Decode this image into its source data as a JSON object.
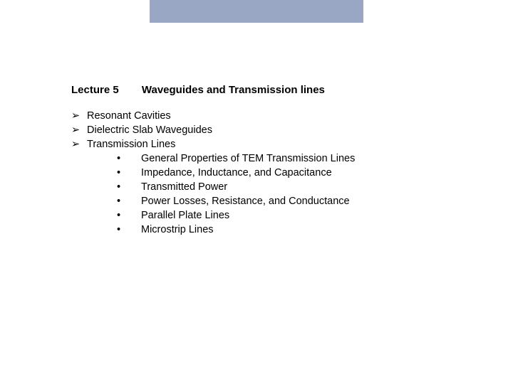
{
  "colors": {
    "top_bar": "#9aa7c4",
    "background": "#ffffff",
    "text": "#000000"
  },
  "heading": {
    "lecture": "Lecture 5",
    "title": "Waveguides and Transmission lines"
  },
  "bullets": {
    "arrow": "➢",
    "dot": "•"
  },
  "outline": [
    {
      "label": " Resonant Cavities",
      "children": []
    },
    {
      "label": "Dielectric Slab Waveguides",
      "children": []
    },
    {
      "label": "Transmission Lines",
      "children": [
        "General Properties of TEM Transmission Lines",
        "Impedance, Inductance, and Capacitance",
        "Transmitted Power",
        "Power Losses, Resistance, and Conductance",
        "Parallel Plate Lines",
        "Microstrip Lines"
      ]
    }
  ]
}
